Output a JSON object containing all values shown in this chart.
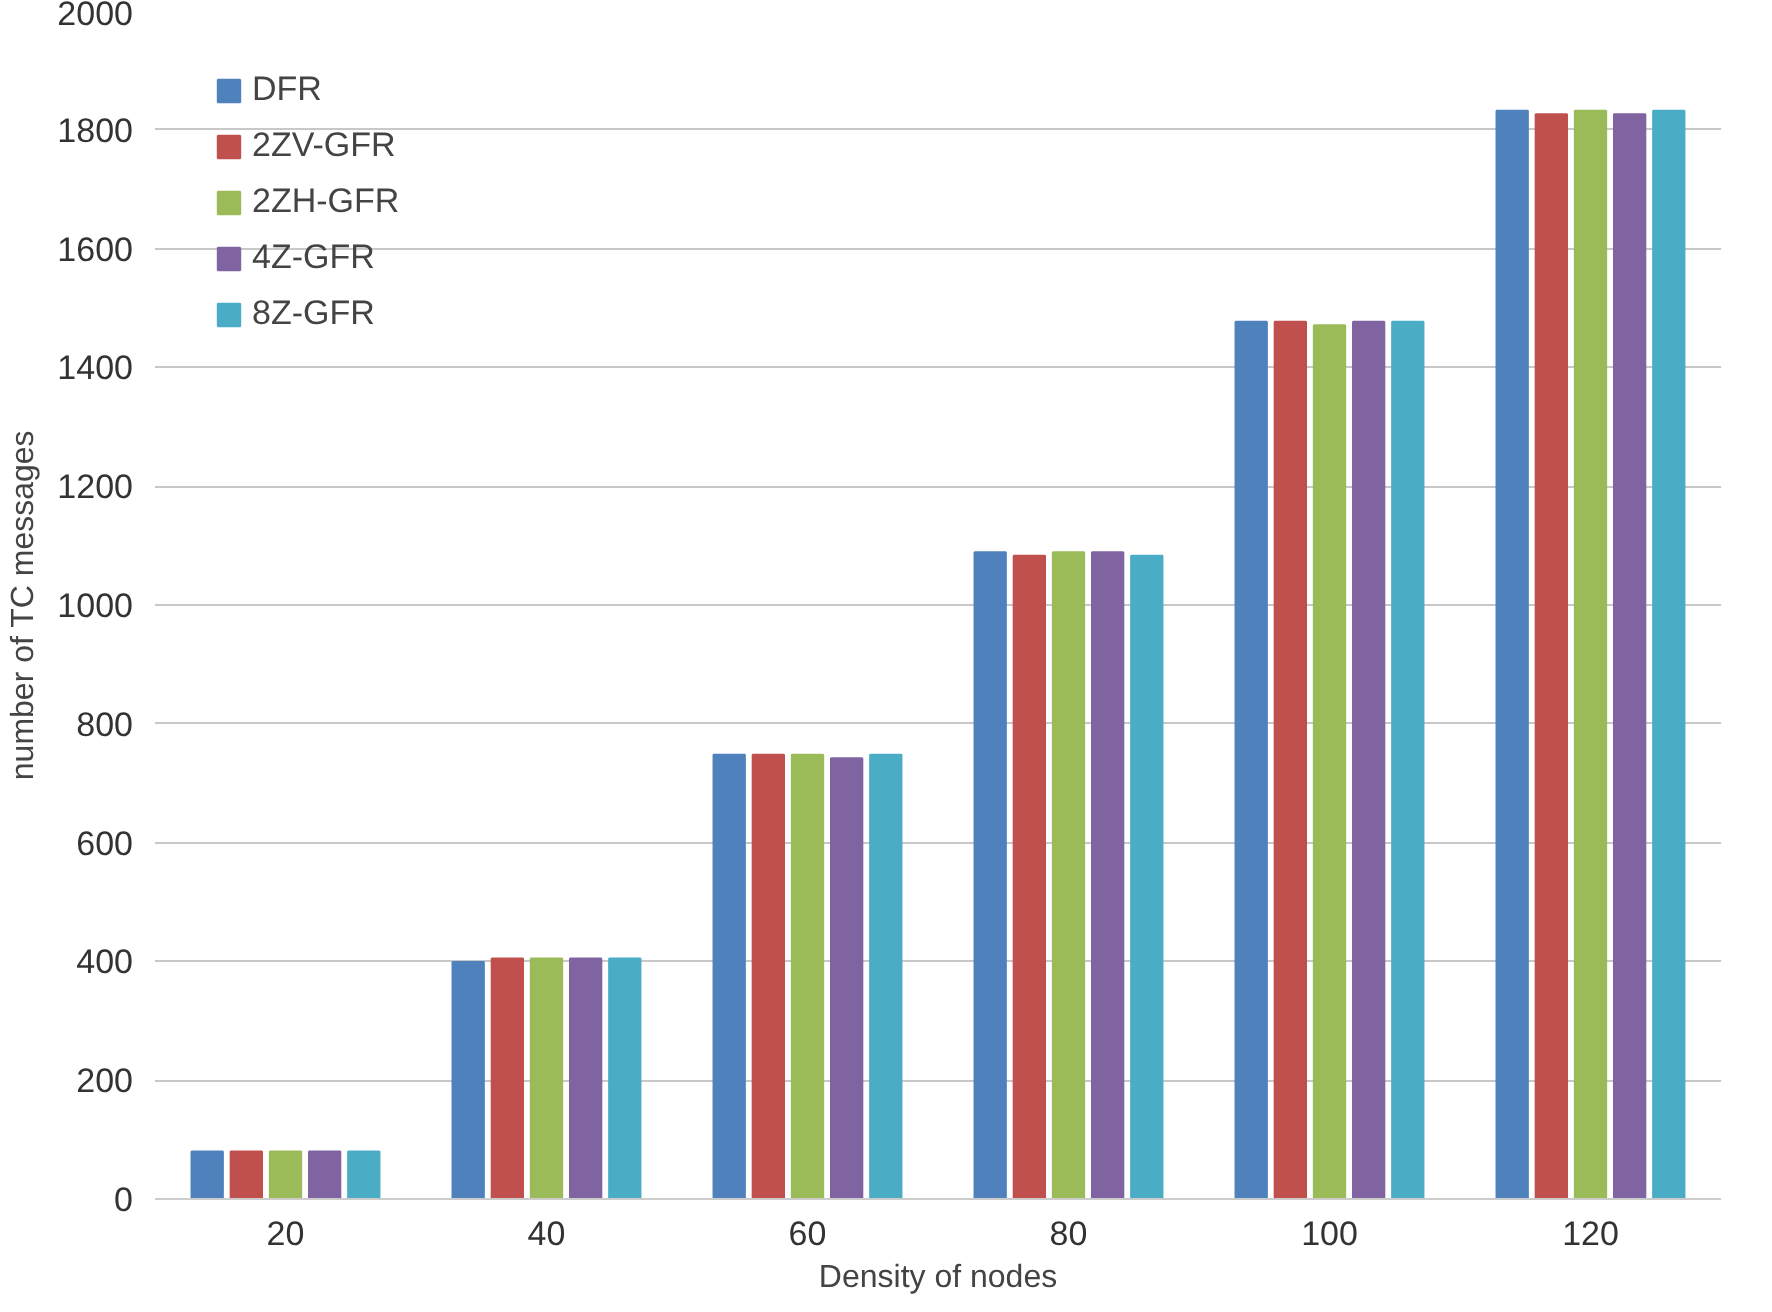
{
  "chart_data": {
    "type": "bar",
    "xlabel": "Density of nodes",
    "ylabel": "number of TC messages",
    "categories": [
      "20",
      "40",
      "60",
      "80",
      "100",
      "120"
    ],
    "series": [
      {
        "name": "DFR",
        "color": "#4f81bd",
        "values": [
          80,
          399,
          748,
          1089,
          1477,
          1832
        ]
      },
      {
        "name": "2ZV-GFR",
        "color": "#c0504d",
        "values": [
          80,
          405,
          748,
          1083,
          1477,
          1826
        ]
      },
      {
        "name": "2ZH-GFR",
        "color": "#9bbb59",
        "values": [
          80,
          405,
          748,
          1089,
          1471,
          1832
        ]
      },
      {
        "name": "4Z-GFR",
        "color": "#8064a2",
        "values": [
          80,
          405,
          742,
          1089,
          1477,
          1826
        ]
      },
      {
        "name": "8Z-GFR",
        "color": "#4bacc6",
        "values": [
          80,
          405,
          748,
          1083,
          1477,
          1832
        ]
      }
    ],
    "ylim": [
      0,
      2000
    ],
    "yticks": [
      0,
      200,
      400,
      600,
      800,
      1000,
      1200,
      1400,
      1600,
      1800,
      2000
    ],
    "grid": "y",
    "legend": "top left"
  }
}
